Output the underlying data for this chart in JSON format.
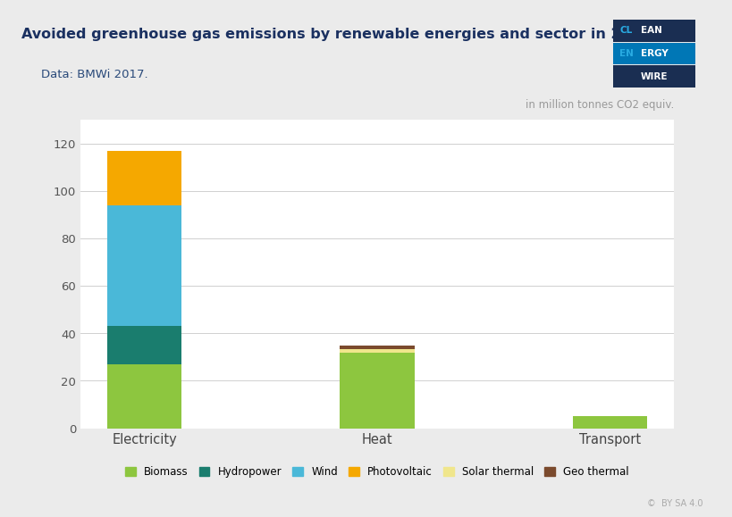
{
  "title": "Avoided greenhouse gas emissions by renewable energies and sector in 2016.",
  "subtitle": "Data: BMWi 2017.",
  "unit_label": "in million tonnes CO2 equiv.",
  "categories": [
    "Electricity",
    "Heat",
    "Transport"
  ],
  "series": [
    {
      "name": "Biomass",
      "color": "#8dc63f",
      "values": [
        27,
        32,
        5
      ]
    },
    {
      "name": "Hydropower",
      "color": "#1a7d6e",
      "values": [
        16,
        0,
        0
      ]
    },
    {
      "name": "Wind",
      "color": "#4ab8d8",
      "values": [
        51,
        0,
        0
      ]
    },
    {
      "name": "Photovoltaic",
      "color": "#f5a800",
      "values": [
        23,
        0,
        0
      ]
    },
    {
      "name": "Solar thermal",
      "color": "#f0e68c",
      "values": [
        0,
        1.5,
        0
      ]
    },
    {
      "name": "Geo thermal",
      "color": "#7b4a2d",
      "values": [
        0,
        1.5,
        0
      ]
    }
  ],
  "ylim": [
    0,
    130
  ],
  "yticks": [
    0,
    20,
    40,
    60,
    80,
    100,
    120
  ],
  "outer_bg": "#ebebeb",
  "header_bg": "#ffffff",
  "plot_bg_color": "#ffffff",
  "title_color": "#1a3060",
  "subtitle_color": "#2a4a7a",
  "grid_color": "#d0d0d0",
  "logo_navy": "#1a2e52",
  "logo_blue": "#0077b6",
  "logo_accent": "#29abe2"
}
